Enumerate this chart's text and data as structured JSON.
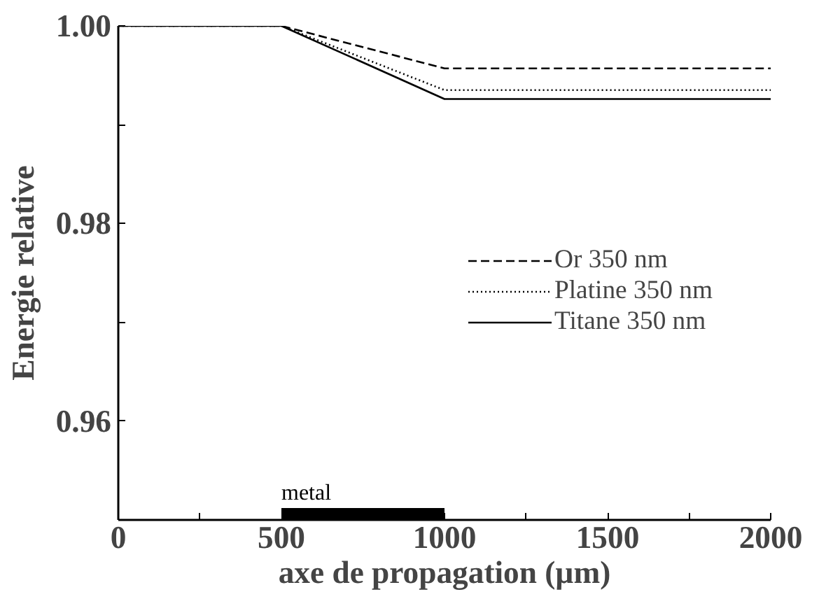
{
  "chart_data": {
    "type": "line",
    "xlabel": "axe de propagation (µm)",
    "ylabel": "Energie relative",
    "x": [
      0,
      500,
      1000,
      2000
    ],
    "series": [
      {
        "name": "Or 350 nm",
        "color": "#000000",
        "line_style": "dashed",
        "values": [
          1.0,
          1.0,
          0.9957,
          0.9957
        ]
      },
      {
        "name": "Platine 350 nm",
        "color": "#000000",
        "line_style": "dotted",
        "values": [
          1.0,
          1.0,
          0.9935,
          0.9935
        ]
      },
      {
        "name": "Titane 350 nm",
        "color": "#000000",
        "line_style": "solid",
        "values": [
          1.0,
          1.0,
          0.9926,
          0.9926
        ]
      },
      {
        "name": "metal",
        "type": "area",
        "color": "#000000",
        "x": [
          500,
          1000
        ],
        "values": [
          0.9512,
          0.9512
        ]
      }
    ],
    "xlim": [
      0,
      2000
    ],
    "ylim": [
      0.95,
      1.0
    ],
    "xticks": [
      0,
      {
        "value": 250,
        "label": null
      },
      500,
      {
        "value": 750,
        "label": null
      },
      1000,
      {
        "value": 1250,
        "label": null
      },
      1500,
      {
        "value": 1750,
        "label": null
      },
      2000
    ],
    "yticks": [
      {
        "value": 0.96,
        "label": "0.96"
      },
      {
        "value": 0.97,
        "label": null
      },
      {
        "value": 0.98,
        "label": "0.98"
      },
      {
        "value": 0.99,
        "label": null
      },
      {
        "value": 1.0,
        "label": "1.00"
      }
    ],
    "grid": false,
    "legend": "right",
    "marker": "none"
  }
}
